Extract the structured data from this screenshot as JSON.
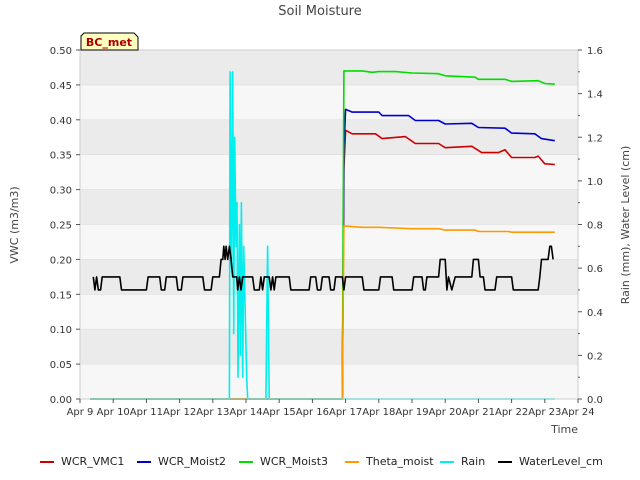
{
  "chart_data": {
    "type": "line",
    "title": "Soil Moisture",
    "badge": "BC_met",
    "xlabel": "Time",
    "ylabel_left": "VWC (m3/m3)",
    "ylabel_right": "Rain (mm), Water Level (cm)",
    "x_range": [
      9,
      24
    ],
    "ylim_left": [
      0,
      0.5
    ],
    "ylim_right": [
      0,
      1.6
    ],
    "grid": "horizontal bands",
    "legend_placement": "bottom",
    "x_ticks": [
      {
        "value": 9,
        "label": "Apr 9"
      },
      {
        "value": 10,
        "label": "Apr 10"
      },
      {
        "value": 11,
        "label": "Apr 11"
      },
      {
        "value": 12,
        "label": "Apr 12"
      },
      {
        "value": 13,
        "label": "Apr 13"
      },
      {
        "value": 14,
        "label": "Apr 14"
      },
      {
        "value": 15,
        "label": "Apr 15"
      },
      {
        "value": 16,
        "label": "Apr 16"
      },
      {
        "value": 17,
        "label": "Apr 17"
      },
      {
        "value": 18,
        "label": "Apr 18"
      },
      {
        "value": 19,
        "label": "Apr 19"
      },
      {
        "value": 20,
        "label": "Apr 20"
      },
      {
        "value": 21,
        "label": "Apr 21"
      },
      {
        "value": 22,
        "label": "Apr 22"
      },
      {
        "value": 23,
        "label": "Apr 23"
      },
      {
        "value": 24,
        "label": "Apr 24"
      }
    ],
    "y_ticks_left": [
      {
        "value": 0,
        "label": "0.00"
      },
      {
        "value": 0.05,
        "label": "0.05"
      },
      {
        "value": 0.1,
        "label": "0.10"
      },
      {
        "value": 0.15,
        "label": "0.15"
      },
      {
        "value": 0.2,
        "label": "0.20"
      },
      {
        "value": 0.25,
        "label": "0.25"
      },
      {
        "value": 0.3,
        "label": "0.30"
      },
      {
        "value": 0.35,
        "label": "0.35"
      },
      {
        "value": 0.4,
        "label": "0.40"
      },
      {
        "value": 0.45,
        "label": "0.45"
      },
      {
        "value": 0.5,
        "label": "0.50"
      }
    ],
    "y_ticks_right": [
      {
        "value": 0,
        "label": "0.0"
      },
      {
        "value": 0.2,
        "label": "0.2"
      },
      {
        "value": 0.4,
        "label": "0.4"
      },
      {
        "value": 0.6,
        "label": "0.6"
      },
      {
        "value": 0.8,
        "label": "0.8"
      },
      {
        "value": 1.0,
        "label": "1.0"
      },
      {
        "value": 1.2,
        "label": "1.2"
      },
      {
        "value": 1.4,
        "label": "1.4"
      },
      {
        "value": 1.6,
        "label": "1.6"
      }
    ],
    "series": [
      {
        "name": "WCR_VMC1",
        "color": "#cc0000",
        "axis": "left",
        "points": [
          [
            9.3,
            0
          ],
          [
            16.9,
            0
          ],
          [
            16.95,
            0.33
          ],
          [
            17.0,
            0.385
          ],
          [
            17.2,
            0.38
          ],
          [
            17.9,
            0.38
          ],
          [
            18.1,
            0.373
          ],
          [
            18.8,
            0.376
          ],
          [
            19.1,
            0.366
          ],
          [
            19.8,
            0.366
          ],
          [
            20.0,
            0.36
          ],
          [
            20.8,
            0.362
          ],
          [
            21.1,
            0.353
          ],
          [
            21.6,
            0.353
          ],
          [
            21.8,
            0.357
          ],
          [
            22.0,
            0.346
          ],
          [
            22.7,
            0.346
          ],
          [
            22.8,
            0.348
          ],
          [
            23.0,
            0.337
          ],
          [
            23.3,
            0.336
          ]
        ]
      },
      {
        "name": "WCR_Moist2",
        "color": "#0000cc",
        "axis": "left",
        "points": [
          [
            9.3,
            0
          ],
          [
            16.9,
            0
          ],
          [
            16.95,
            0.36
          ],
          [
            17.0,
            0.415
          ],
          [
            17.2,
            0.411
          ],
          [
            18.0,
            0.411
          ],
          [
            18.1,
            0.406
          ],
          [
            18.9,
            0.406
          ],
          [
            19.1,
            0.399
          ],
          [
            19.8,
            0.399
          ],
          [
            20.0,
            0.394
          ],
          [
            20.8,
            0.395
          ],
          [
            21.0,
            0.389
          ],
          [
            21.8,
            0.388
          ],
          [
            22.0,
            0.381
          ],
          [
            22.7,
            0.38
          ],
          [
            22.9,
            0.373
          ],
          [
            23.3,
            0.37
          ]
        ]
      },
      {
        "name": "WCR_Moist3",
        "color": "#00dd00",
        "axis": "left",
        "points": [
          [
            9.3,
            0
          ],
          [
            16.9,
            0
          ],
          [
            16.95,
            0.47
          ],
          [
            17.5,
            0.47
          ],
          [
            17.8,
            0.468
          ],
          [
            18.0,
            0.469
          ],
          [
            18.5,
            0.469
          ],
          [
            19.0,
            0.467
          ],
          [
            19.8,
            0.466
          ],
          [
            20.0,
            0.463
          ],
          [
            20.9,
            0.461
          ],
          [
            21.0,
            0.458
          ],
          [
            21.8,
            0.458
          ],
          [
            22.0,
            0.455
          ],
          [
            22.8,
            0.456
          ],
          [
            23.0,
            0.452
          ],
          [
            23.3,
            0.451
          ]
        ]
      },
      {
        "name": "Theta_moist",
        "color": "#ff9900",
        "axis": "left",
        "points": [
          [
            9.3,
            0
          ],
          [
            16.9,
            0
          ],
          [
            16.95,
            0.248
          ],
          [
            17.5,
            0.246
          ],
          [
            18.0,
            0.246
          ],
          [
            18.5,
            0.245
          ],
          [
            19.0,
            0.244
          ],
          [
            19.8,
            0.244
          ],
          [
            20.0,
            0.242
          ],
          [
            20.9,
            0.242
          ],
          [
            21.0,
            0.24
          ],
          [
            21.9,
            0.24
          ],
          [
            22.0,
            0.239
          ],
          [
            23.3,
            0.239
          ]
        ]
      },
      {
        "name": "Rain",
        "color": "#00eeee",
        "axis": "right",
        "points": [
          [
            9.3,
            0
          ],
          [
            13.5,
            0
          ],
          [
            13.52,
            1.5
          ],
          [
            13.56,
            0.6
          ],
          [
            13.6,
            1.5
          ],
          [
            13.63,
            0.3
          ],
          [
            13.66,
            1.2
          ],
          [
            13.7,
            0.7
          ],
          [
            13.73,
            0.9
          ],
          [
            13.76,
            0.1
          ],
          [
            13.8,
            0.8
          ],
          [
            13.83,
            0.2
          ],
          [
            13.86,
            0.9
          ],
          [
            13.9,
            0.1
          ],
          [
            13.93,
            0.7
          ],
          [
            13.96,
            0.5
          ],
          [
            13.99,
            0.3
          ],
          [
            14.02,
            0.1
          ],
          [
            14.05,
            0
          ],
          [
            14.6,
            0
          ],
          [
            14.65,
            0.7
          ],
          [
            14.7,
            0
          ],
          [
            23.3,
            0
          ]
        ]
      },
      {
        "name": "WaterLevel_cm",
        "color": "#000000",
        "axis": "right",
        "points": [
          [
            9.4,
            0.56
          ],
          [
            9.45,
            0.5
          ],
          [
            9.5,
            0.56
          ],
          [
            9.55,
            0.5
          ],
          [
            9.62,
            0.5
          ],
          [
            9.67,
            0.56
          ],
          [
            10.2,
            0.56
          ],
          [
            10.25,
            0.5
          ],
          [
            11.0,
            0.5
          ],
          [
            11.05,
            0.56
          ],
          [
            11.4,
            0.56
          ],
          [
            11.45,
            0.5
          ],
          [
            11.55,
            0.5
          ],
          [
            11.6,
            0.56
          ],
          [
            11.9,
            0.56
          ],
          [
            11.95,
            0.5
          ],
          [
            12.05,
            0.5
          ],
          [
            12.1,
            0.56
          ],
          [
            12.7,
            0.56
          ],
          [
            12.75,
            0.5
          ],
          [
            12.95,
            0.5
          ],
          [
            13.0,
            0.56
          ],
          [
            13.2,
            0.56
          ],
          [
            13.25,
            0.64
          ],
          [
            13.3,
            0.64
          ],
          [
            13.33,
            0.7
          ],
          [
            13.37,
            0.64
          ],
          [
            13.4,
            0.7
          ],
          [
            13.45,
            0.64
          ],
          [
            13.5,
            0.7
          ],
          [
            13.55,
            0.64
          ],
          [
            13.6,
            0.56
          ],
          [
            13.72,
            0.56
          ],
          [
            13.75,
            0.5
          ],
          [
            13.8,
            0.56
          ],
          [
            13.85,
            0.5
          ],
          [
            13.9,
            0.56
          ],
          [
            14.2,
            0.56
          ],
          [
            14.25,
            0.5
          ],
          [
            14.4,
            0.5
          ],
          [
            14.45,
            0.56
          ],
          [
            14.5,
            0.5
          ],
          [
            14.55,
            0.56
          ],
          [
            14.7,
            0.56
          ],
          [
            14.75,
            0.5
          ],
          [
            14.8,
            0.56
          ],
          [
            14.85,
            0.5
          ],
          [
            14.9,
            0.56
          ],
          [
            15.3,
            0.56
          ],
          [
            15.35,
            0.5
          ],
          [
            15.9,
            0.5
          ],
          [
            15.95,
            0.56
          ],
          [
            16.1,
            0.56
          ],
          [
            16.15,
            0.5
          ],
          [
            16.25,
            0.5
          ],
          [
            16.3,
            0.56
          ],
          [
            16.5,
            0.56
          ],
          [
            16.55,
            0.5
          ],
          [
            16.65,
            0.5
          ],
          [
            16.7,
            0.56
          ],
          [
            16.9,
            0.56
          ],
          [
            16.95,
            0.5
          ],
          [
            17.0,
            0.56
          ],
          [
            17.5,
            0.56
          ],
          [
            17.55,
            0.5
          ],
          [
            18.0,
            0.5
          ],
          [
            18.05,
            0.56
          ],
          [
            18.4,
            0.56
          ],
          [
            18.45,
            0.5
          ],
          [
            19.0,
            0.5
          ],
          [
            19.05,
            0.56
          ],
          [
            19.3,
            0.56
          ],
          [
            19.35,
            0.5
          ],
          [
            19.4,
            0.5
          ],
          [
            19.45,
            0.56
          ],
          [
            19.8,
            0.56
          ],
          [
            19.85,
            0.64
          ],
          [
            20.0,
            0.64
          ],
          [
            20.05,
            0.5
          ],
          [
            20.1,
            0.56
          ],
          [
            20.2,
            0.5
          ],
          [
            20.3,
            0.56
          ],
          [
            20.8,
            0.56
          ],
          [
            20.85,
            0.64
          ],
          [
            21.0,
            0.64
          ],
          [
            21.05,
            0.56
          ],
          [
            21.15,
            0.56
          ],
          [
            21.2,
            0.5
          ],
          [
            21.5,
            0.5
          ],
          [
            21.55,
            0.56
          ],
          [
            22.0,
            0.56
          ],
          [
            22.05,
            0.5
          ],
          [
            22.8,
            0.5
          ],
          [
            22.85,
            0.56
          ],
          [
            22.9,
            0.64
          ],
          [
            23.1,
            0.64
          ],
          [
            23.15,
            0.7
          ],
          [
            23.2,
            0.7
          ],
          [
            23.25,
            0.64
          ]
        ]
      }
    ]
  }
}
